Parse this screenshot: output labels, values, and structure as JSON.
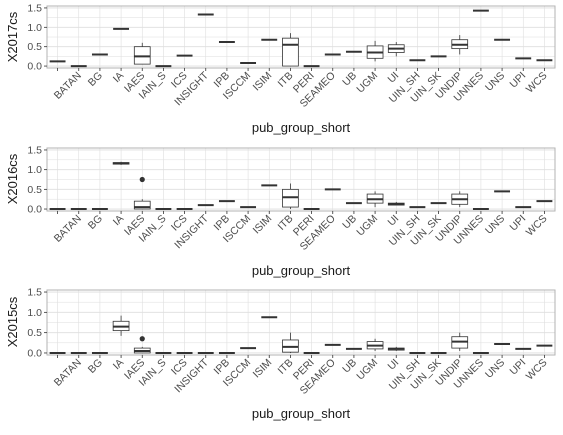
{
  "chart_data": [
    {
      "type": "boxplot",
      "xlabel": "pub_group_short",
      "ylabel": "X2017cs",
      "ylim": [
        -0.05,
        1.55
      ],
      "yticks": [
        "0.0",
        "0.5",
        "1.0",
        "1.5"
      ],
      "categories": [
        "",
        "BATAN",
        "BG",
        "IA",
        "IAES",
        "IAIN_S",
        "ICS",
        "INSIGHT",
        "IPB",
        "ISCCM",
        "ISIM",
        "ITB",
        "PERI",
        "SEAMEO",
        "UB",
        "UGM",
        "UI",
        "UIN_SH",
        "UIN_SK",
        "UNDIP",
        "UNNES",
        "UNS",
        "UPI",
        "WCS"
      ],
      "boxes": [
        {
          "min": 0.12,
          "q1": 0.12,
          "median": 0.12,
          "q3": 0.12,
          "max": 0.12
        },
        {
          "min": 0.0,
          "q1": 0.0,
          "median": 0.0,
          "q3": 0.0,
          "max": 0.0
        },
        {
          "min": 0.3,
          "q1": 0.3,
          "median": 0.3,
          "q3": 0.3,
          "max": 0.3
        },
        {
          "min": 0.96,
          "q1": 0.96,
          "median": 0.96,
          "q3": 0.96,
          "max": 0.96
        },
        {
          "min": 0.05,
          "q1": 0.05,
          "median": 0.25,
          "q3": 0.5,
          "max": 0.6
        },
        {
          "min": 0.0,
          "q1": 0.0,
          "median": 0.0,
          "q3": 0.0,
          "max": 0.0
        },
        {
          "min": 0.27,
          "q1": 0.27,
          "median": 0.27,
          "q3": 0.27,
          "max": 0.27
        },
        {
          "min": 1.33,
          "q1": 1.33,
          "median": 1.33,
          "q3": 1.33,
          "max": 1.33
        },
        {
          "min": 0.62,
          "q1": 0.62,
          "median": 0.62,
          "q3": 0.62,
          "max": 0.62
        },
        {
          "min": 0.08,
          "q1": 0.08,
          "median": 0.08,
          "q3": 0.08,
          "max": 0.08
        },
        {
          "min": 0.68,
          "q1": 0.68,
          "median": 0.68,
          "q3": 0.68,
          "max": 0.68
        },
        {
          "min": 0.0,
          "q1": 0.0,
          "median": 0.55,
          "q3": 0.72,
          "max": 0.85
        },
        {
          "min": 0.0,
          "q1": 0.0,
          "median": 0.0,
          "q3": 0.0,
          "max": 0.0
        },
        {
          "min": 0.3,
          "q1": 0.3,
          "median": 0.3,
          "q3": 0.3,
          "max": 0.3
        },
        {
          "min": 0.37,
          "q1": 0.37,
          "median": 0.37,
          "q3": 0.37,
          "max": 0.37
        },
        {
          "min": 0.12,
          "q1": 0.2,
          "median": 0.35,
          "q3": 0.52,
          "max": 0.65
        },
        {
          "min": 0.25,
          "q1": 0.35,
          "median": 0.45,
          "q3": 0.55,
          "max": 0.62
        },
        {
          "min": 0.15,
          "q1": 0.15,
          "median": 0.15,
          "q3": 0.15,
          "max": 0.15
        },
        {
          "min": 0.25,
          "q1": 0.25,
          "median": 0.25,
          "q3": 0.25,
          "max": 0.25
        },
        {
          "min": 0.3,
          "q1": 0.45,
          "median": 0.55,
          "q3": 0.68,
          "max": 0.8
        },
        {
          "min": 1.43,
          "q1": 1.43,
          "median": 1.43,
          "q3": 1.43,
          "max": 1.43
        },
        {
          "min": 0.68,
          "q1": 0.68,
          "median": 0.68,
          "q3": 0.68,
          "max": 0.68
        },
        {
          "min": 0.2,
          "q1": 0.2,
          "median": 0.2,
          "q3": 0.2,
          "max": 0.2
        },
        {
          "min": 0.15,
          "q1": 0.15,
          "median": 0.15,
          "q3": 0.15,
          "max": 0.15
        }
      ],
      "outliers": []
    },
    {
      "type": "boxplot",
      "xlabel": "pub_group_short",
      "ylabel": "X2016cs",
      "ylim": [
        -0.05,
        1.55
      ],
      "yticks": [
        "0.0",
        "0.5",
        "1.0",
        "1.5"
      ],
      "categories": [
        "",
        "BATAN",
        "BG",
        "IA",
        "IAES",
        "IAIN_S",
        "ICS",
        "INSIGHT",
        "IPB",
        "ISCCM",
        "ISIM",
        "ITB",
        "PERI",
        "SEAMEO",
        "UB",
        "UGM",
        "UI",
        "UIN_SH",
        "UIN_SK",
        "UNDIP",
        "UNNES",
        "UNS",
        "UPI",
        "WCS"
      ],
      "boxes": [
        {
          "min": 0.0,
          "q1": 0.0,
          "median": 0.0,
          "q3": 0.0,
          "max": 0.0
        },
        {
          "min": 0.0,
          "q1": 0.0,
          "median": 0.0,
          "q3": 0.0,
          "max": 0.0
        },
        {
          "min": 0.0,
          "q1": 0.0,
          "median": 0.0,
          "q3": 0.0,
          "max": 0.0
        },
        {
          "min": 1.12,
          "q1": 1.14,
          "median": 1.16,
          "q3": 1.18,
          "max": 1.2
        },
        {
          "min": 0.0,
          "q1": 0.0,
          "median": 0.05,
          "q3": 0.2,
          "max": 0.25
        },
        {
          "min": 0.0,
          "q1": 0.0,
          "median": 0.0,
          "q3": 0.0,
          "max": 0.0
        },
        {
          "min": 0.0,
          "q1": 0.0,
          "median": 0.0,
          "q3": 0.0,
          "max": 0.0
        },
        {
          "min": 0.1,
          "q1": 0.1,
          "median": 0.1,
          "q3": 0.1,
          "max": 0.1
        },
        {
          "min": 0.2,
          "q1": 0.2,
          "median": 0.2,
          "q3": 0.2,
          "max": 0.2
        },
        {
          "min": 0.05,
          "q1": 0.05,
          "median": 0.05,
          "q3": 0.05,
          "max": 0.05
        },
        {
          "min": 0.6,
          "q1": 0.6,
          "median": 0.6,
          "q3": 0.6,
          "max": 0.6
        },
        {
          "min": 0.0,
          "q1": 0.05,
          "median": 0.3,
          "q3": 0.5,
          "max": 0.65
        },
        {
          "min": 0.0,
          "q1": 0.0,
          "median": 0.0,
          "q3": 0.0,
          "max": 0.0
        },
        {
          "min": 0.5,
          "q1": 0.5,
          "median": 0.5,
          "q3": 0.5,
          "max": 0.5
        },
        {
          "min": 0.15,
          "q1": 0.15,
          "median": 0.15,
          "q3": 0.15,
          "max": 0.15
        },
        {
          "min": 0.05,
          "q1": 0.15,
          "median": 0.25,
          "q3": 0.38,
          "max": 0.45
        },
        {
          "min": 0.1,
          "q1": 0.1,
          "median": 0.12,
          "q3": 0.15,
          "max": 0.18
        },
        {
          "min": 0.05,
          "q1": 0.05,
          "median": 0.05,
          "q3": 0.05,
          "max": 0.05
        },
        {
          "min": 0.15,
          "q1": 0.15,
          "median": 0.15,
          "q3": 0.15,
          "max": 0.15
        },
        {
          "min": 0.05,
          "q1": 0.12,
          "median": 0.25,
          "q3": 0.38,
          "max": 0.45
        },
        {
          "min": 0.0,
          "q1": 0.0,
          "median": 0.0,
          "q3": 0.0,
          "max": 0.0
        },
        {
          "min": 0.45,
          "q1": 0.45,
          "median": 0.45,
          "q3": 0.45,
          "max": 0.45
        },
        {
          "min": 0.05,
          "q1": 0.05,
          "median": 0.05,
          "q3": 0.05,
          "max": 0.05
        },
        {
          "min": 0.2,
          "q1": 0.2,
          "median": 0.2,
          "q3": 0.2,
          "max": 0.2
        }
      ],
      "outliers": [
        {
          "category": "IAES",
          "value": 0.75
        }
      ]
    },
    {
      "type": "boxplot",
      "xlabel": "pub_group_short",
      "ylabel": "X2015cs",
      "ylim": [
        -0.05,
        1.55
      ],
      "yticks": [
        "0.0",
        "0.5",
        "1.0",
        "1.5"
      ],
      "categories": [
        "",
        "BATAN",
        "BG",
        "IA",
        "IAES",
        "IAIN_S",
        "ICS",
        "INSIGHT",
        "IPB",
        "ISCCM",
        "ISIM",
        "ITB",
        "PERI",
        "SEAMEO",
        "UB",
        "UGM",
        "UI",
        "UIN_SH",
        "UIN_SK",
        "UNDIP",
        "UNNES",
        "UNS",
        "UPI",
        "WCS"
      ],
      "boxes": [
        {
          "min": 0.0,
          "q1": 0.0,
          "median": 0.0,
          "q3": 0.0,
          "max": 0.0
        },
        {
          "min": 0.0,
          "q1": 0.0,
          "median": 0.0,
          "q3": 0.0,
          "max": 0.0
        },
        {
          "min": 0.0,
          "q1": 0.0,
          "median": 0.0,
          "q3": 0.0,
          "max": 0.0
        },
        {
          "min": 0.42,
          "q1": 0.55,
          "median": 0.65,
          "q3": 0.78,
          "max": 0.92
        },
        {
          "min": 0.0,
          "q1": 0.0,
          "median": 0.05,
          "q3": 0.12,
          "max": 0.15
        },
        {
          "min": 0.0,
          "q1": 0.0,
          "median": 0.0,
          "q3": 0.0,
          "max": 0.0
        },
        {
          "min": 0.0,
          "q1": 0.0,
          "median": 0.0,
          "q3": 0.0,
          "max": 0.0
        },
        {
          "min": 0.0,
          "q1": 0.0,
          "median": 0.0,
          "q3": 0.0,
          "max": 0.0
        },
        {
          "min": 0.0,
          "q1": 0.0,
          "median": 0.0,
          "q3": 0.0,
          "max": 0.0
        },
        {
          "min": 0.12,
          "q1": 0.12,
          "median": 0.12,
          "q3": 0.12,
          "max": 0.12
        },
        {
          "min": 0.88,
          "q1": 0.88,
          "median": 0.88,
          "q3": 0.88,
          "max": 0.88
        },
        {
          "min": 0.0,
          "q1": 0.02,
          "median": 0.15,
          "q3": 0.32,
          "max": 0.5
        },
        {
          "min": 0.0,
          "q1": 0.0,
          "median": 0.0,
          "q3": 0.0,
          "max": 0.0
        },
        {
          "min": 0.2,
          "q1": 0.2,
          "median": 0.2,
          "q3": 0.2,
          "max": 0.2
        },
        {
          "min": 0.1,
          "q1": 0.1,
          "median": 0.1,
          "q3": 0.1,
          "max": 0.1
        },
        {
          "min": 0.05,
          "q1": 0.1,
          "median": 0.18,
          "q3": 0.28,
          "max": 0.35
        },
        {
          "min": 0.05,
          "q1": 0.07,
          "median": 0.1,
          "q3": 0.12,
          "max": 0.15
        },
        {
          "min": 0.0,
          "q1": 0.0,
          "median": 0.0,
          "q3": 0.0,
          "max": 0.0
        },
        {
          "min": 0.0,
          "q1": 0.0,
          "median": 0.0,
          "q3": 0.0,
          "max": 0.0
        },
        {
          "min": 0.05,
          "q1": 0.12,
          "median": 0.28,
          "q3": 0.4,
          "max": 0.5
        },
        {
          "min": 0.0,
          "q1": 0.0,
          "median": 0.0,
          "q3": 0.0,
          "max": 0.0
        },
        {
          "min": 0.22,
          "q1": 0.22,
          "median": 0.22,
          "q3": 0.22,
          "max": 0.22
        },
        {
          "min": 0.1,
          "q1": 0.1,
          "median": 0.1,
          "q3": 0.1,
          "max": 0.1
        },
        {
          "min": 0.18,
          "q1": 0.18,
          "median": 0.18,
          "q3": 0.18,
          "max": 0.18
        }
      ],
      "outliers": [
        {
          "category": "IAES",
          "value": 0.35
        }
      ]
    }
  ],
  "style": {
    "grid": true,
    "grid_color": "#dedede",
    "box_stroke": "#333333",
    "panel_border": "#b3b3b3",
    "text_color": "#1a1a1a",
    "tick_text_color": "#4d4d4d"
  }
}
